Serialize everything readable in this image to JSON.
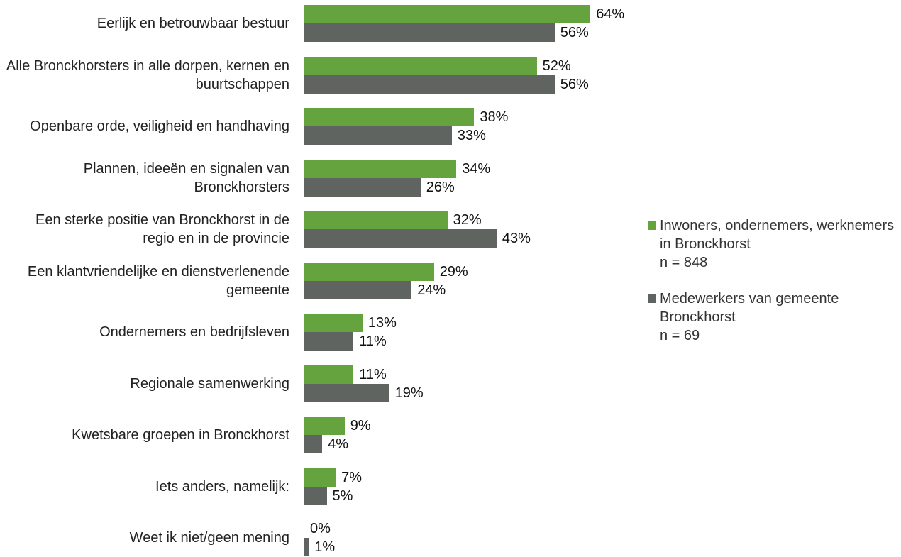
{
  "chart_data": {
    "type": "bar",
    "orientation": "horizontal",
    "categories": [
      "Eerlijk en betrouwbaar bestuur",
      "Alle Bronckhorsters in alle dorpen, kernen en buurtschappen",
      "Openbare orde, veiligheid en handhaving",
      "Plannen, ideeën en signalen van Bronckhorsters",
      "Een sterke positie van Bronckhorst in de regio en in de provincie",
      "Een klantvriendelijke en dienstverlenende gemeente",
      "Ondernemers en bedrijfsleven",
      "Regionale samenwerking",
      "Kwetsbare groepen in Bronckhorst",
      "Iets anders, namelijk:",
      "Weet ik niet/geen mening"
    ],
    "series": [
      {
        "name": "Inwoners, ondernemers, werknemers in Bronckhorst\nn = 848",
        "color": "#64a33e",
        "values": [
          64,
          52,
          38,
          34,
          32,
          29,
          13,
          11,
          9,
          7,
          0
        ],
        "value_labels": [
          "64%",
          "52%",
          "38%",
          "34%",
          "32%",
          "29%",
          "13%",
          "11%",
          "9%",
          "7%",
          "0%"
        ]
      },
      {
        "name": "Medewerkers van gemeente Bronckhorst\nn = 69",
        "color": "#5f6461",
        "values": [
          56,
          56,
          33,
          26,
          43,
          24,
          11,
          19,
          4,
          5,
          1
        ],
        "value_labels": [
          "56%",
          "56%",
          "33%",
          "26%",
          "43%",
          "24%",
          "11%",
          "19%",
          "4%",
          "5%",
          "1%"
        ]
      }
    ],
    "legend": "right"
  }
}
